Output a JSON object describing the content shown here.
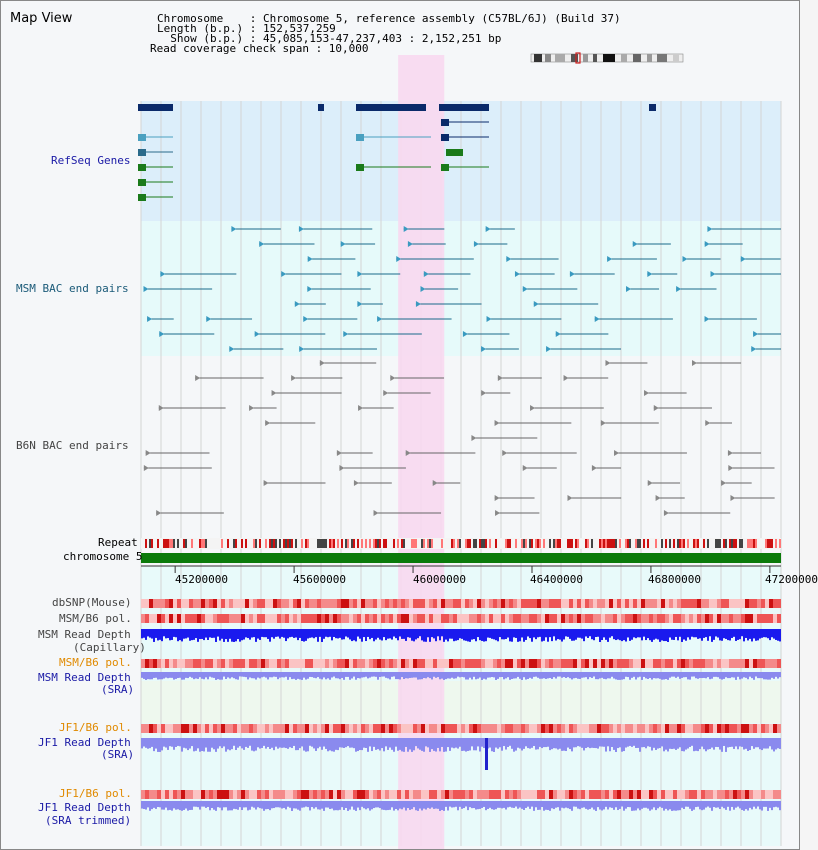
{
  "view": {
    "title": "Map View"
  },
  "header": {
    "line1": "Chromosome    : Chromosome 5, reference assembly (C57BL/6J) (Build 37)",
    "line2": "Length (b.p.) : 152,537,259",
    "line3": "  Show (b.p.) : 45,085,153-47,237,403 : 2,152,251 bp",
    "line4": "Read coverage check span : 10,000"
  },
  "region": {
    "start": 45085153,
    "end": 47237403,
    "highlight_start": 45950000,
    "highlight_end": 46105000
  },
  "tracks": {
    "refseq": "RefSeq Genes",
    "msm_bac": "MSM BAC end pairs",
    "b6n_bac": "B6N BAC end pairs",
    "repeat": "Repeat",
    "chromosome": "chromosome 5",
    "dbsnp": "dbSNP(Mouse)",
    "msm_b6_pol_1": "MSM/B6 pol.",
    "msm_read_depth_cap_1": "MSM Read Depth",
    "msm_read_depth_cap_2": "(Capillary)",
    "msm_b6_pol_2": "MSM/B6 pol.",
    "msm_read_depth_sra_1": "MSM Read Depth",
    "msm_read_depth_sra_2": "(SRA)",
    "jf1_b6_pol_1": "JF1/B6 pol.",
    "jf1_read_depth_sra_1": "JF1 Read Depth",
    "jf1_read_depth_sra_2": "(SRA)",
    "jf1_b6_pol_2": "JF1/B6 pol.",
    "jf1_read_depth_trim_1": "JF1 Read Depth",
    "jf1_read_depth_trim_2": "(SRA trimmed)"
  },
  "axis": {
    "ticks": [
      "45200000",
      "45600000",
      "46000000",
      "46400000",
      "46800000",
      "47200000"
    ]
  },
  "colors": {
    "refseq_bg": "#dceefa",
    "msm_bg": "#e6fafa",
    "highlight": "#f8d8f0",
    "gene_dark": "#0a2a6a",
    "gene_green": "#1a7a1a",
    "msm_line": "#1a6a8a",
    "b6n_line": "#666666",
    "chrom_green": "#0a7a0a",
    "depth_blue": "#1a1aee",
    "depth_light": "#8a8aee",
    "pol_red": "#ee5555"
  }
}
